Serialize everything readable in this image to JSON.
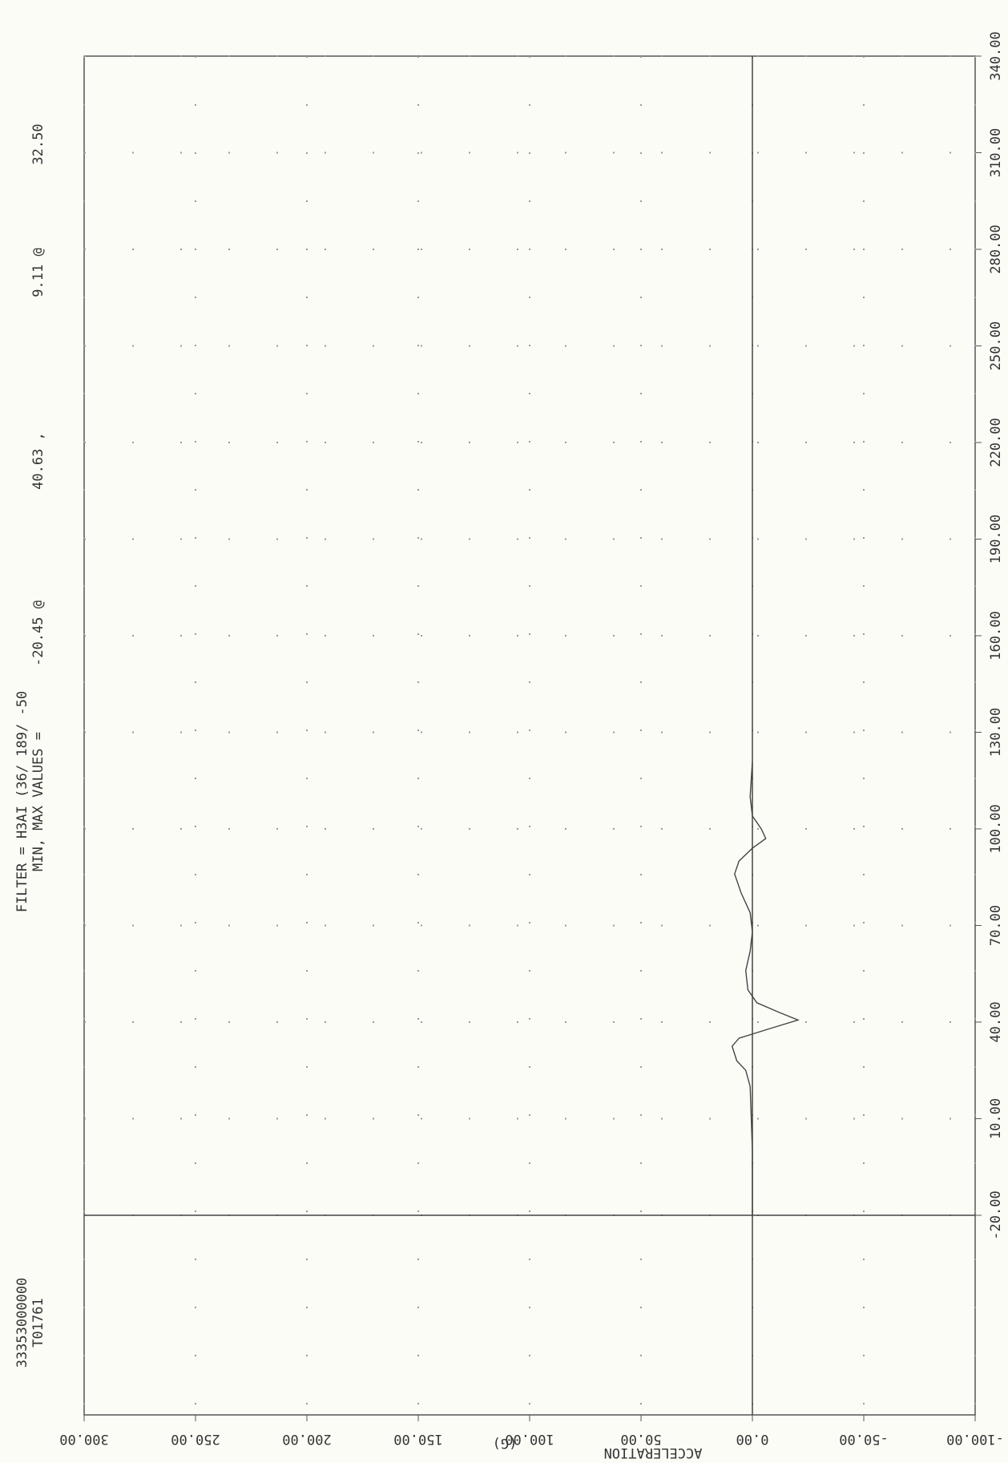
{
  "chart_data": {
    "type": "line",
    "annotations": [
      "33353000000",
      "T01761",
      "FILTER = H3AI   (36/  189/ -50",
      "MIN, MAX VALUES =",
      "-20.45 @",
      "40.63 ,",
      "9.11 @",
      "32.50"
    ],
    "y_label": "ACCELERATION",
    "y_unit": "(G)",
    "x": [
      -20,
      0,
      10,
      20,
      25,
      28,
      32.5,
      35,
      38,
      40.63,
      43,
      46,
      50,
      56,
      62,
      68,
      74,
      80,
      86,
      90,
      94,
      97,
      100,
      104,
      110,
      121
    ],
    "series": [
      {
        "color": "#444444",
        "values": [
          0,
          0,
          0.5,
          1,
          3,
          7,
          9.11,
          6,
          -8,
          -20.45,
          -12,
          -2,
          2,
          3,
          1,
          0,
          1,
          5,
          8,
          6,
          0,
          -6,
          -4,
          0,
          1,
          0
        ]
      }
    ],
    "xlim": [
      -82,
      340
    ],
    "xticks": [
      {
        "value": -20,
        "label": "-20.00"
      },
      {
        "value": 10,
        "label": "10.00"
      },
      {
        "value": 40,
        "label": "40.00"
      },
      {
        "value": 70,
        "label": "70.00"
      },
      {
        "value": 100,
        "label": "100.00"
      },
      {
        "value": 130,
        "label": "130.00"
      },
      {
        "value": 160,
        "label": "160.00"
      },
      {
        "value": 190,
        "label": "190.00"
      },
      {
        "value": 220,
        "label": "220.00"
      },
      {
        "value": 250,
        "label": "250.00"
      },
      {
        "value": 280,
        "label": "280.00"
      },
      {
        "value": 310,
        "label": "310.00"
      },
      {
        "value": 340,
        "label": "340.00"
      }
    ],
    "ylim": [
      -100,
      300
    ],
    "yticks": [
      {
        "value": -100,
        "label": "-100.00"
      },
      {
        "value": -50,
        "label": "-50.00"
      },
      {
        "value": 0,
        "label": "0.00"
      },
      {
        "value": 50,
        "label": "50.00"
      },
      {
        "value": 100,
        "label": "100.00"
      },
      {
        "value": 150,
        "label": "150.00"
      },
      {
        "value": 200,
        "label": "200.00"
      },
      {
        "value": 250,
        "label": "250.00"
      },
      {
        "value": 300,
        "label": "300.00"
      }
    ],
    "grid": true
  }
}
